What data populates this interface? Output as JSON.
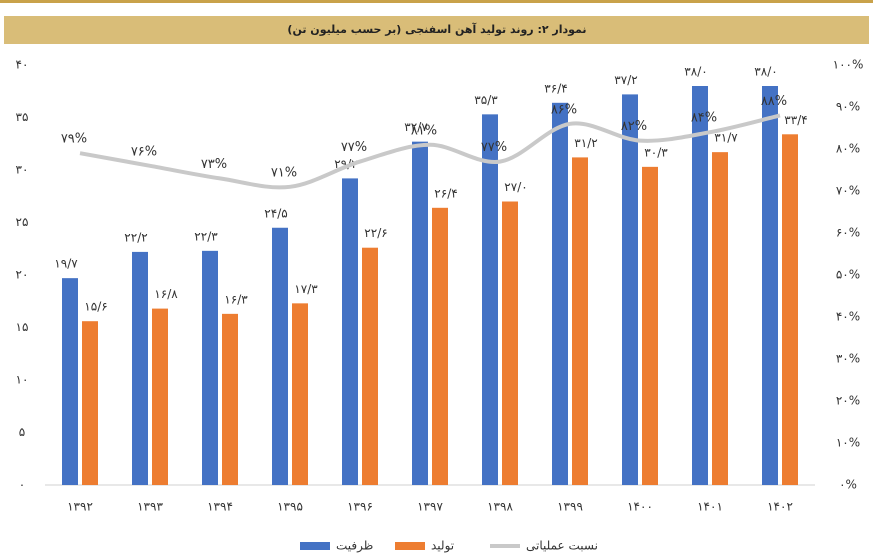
{
  "chart_data": {
    "type": "bar",
    "title": "نمودار ۲: روند تولید آهن اسفنجی (بر حسب میلیون تن)",
    "categories": [
      "۱۳۹۲",
      "۱۳۹۳",
      "۱۳۹۴",
      "۱۳۹۵",
      "۱۳۹۶",
      "۱۳۹۷",
      "۱۳۹۸",
      "۱۳۹۹",
      "۱۴۰۰",
      "۱۴۰۱",
      "۱۴۰۲"
    ],
    "series": [
      {
        "name": "ظرفیت",
        "color": "#4472c4",
        "values": [
          19.7,
          22.2,
          22.3,
          24.5,
          29.2,
          32.7,
          35.3,
          36.4,
          37.2,
          38.0,
          38.0
        ],
        "value_labels": [
          "۱۹/۷",
          "۲۲/۲",
          "۲۲/۳",
          "۲۴/۵",
          "۲۹/۲",
          "۳۲/۷",
          "۳۵/۳",
          "۳۶/۴",
          "۳۷/۲",
          "۳۸/۰",
          "۳۸/۰"
        ]
      },
      {
        "name": "تولید",
        "color": "#ed7d31",
        "values": [
          15.6,
          16.8,
          16.3,
          17.3,
          22.6,
          26.4,
          27.0,
          31.2,
          30.3,
          31.7,
          33.4
        ],
        "value_labels": [
          "۱۵/۶",
          "۱۶/۸",
          "۱۶/۳",
          "۱۷/۳",
          "۲۲/۶",
          "۲۶/۴",
          "۲۷/۰",
          "۳۱/۲",
          "۳۰/۳",
          "۳۱/۷",
          "۳۳/۴"
        ]
      },
      {
        "name": "نسبت عملیاتی",
        "color": "#c9c9c9",
        "type": "line",
        "axis": "y2",
        "values": [
          79,
          76,
          73,
          71,
          77,
          81,
          77,
          86,
          82,
          84,
          88
        ],
        "value_labels": [
          "۷۹%",
          "۷۶%",
          "۷۳%",
          "۷۱%",
          "۷۷%",
          "۸۱%",
          "۷۷%",
          "۸۶%",
          "۸۲%",
          "۸۴%",
          "۸۸%"
        ]
      }
    ],
    "ylim": [
      0,
      40
    ],
    "yticks": [
      {
        "value": 0,
        "label": "۰"
      },
      {
        "value": 5,
        "label": "۵"
      },
      {
        "value": 10,
        "label": "۱۰"
      },
      {
        "value": 15,
        "label": "۱۵"
      },
      {
        "value": 20,
        "label": "۲۰"
      },
      {
        "value": 25,
        "label": "۲۵"
      },
      {
        "value": 30,
        "label": "۳۰"
      },
      {
        "value": 35,
        "label": "۳۵"
      },
      {
        "value": 40,
        "label": "۴۰"
      }
    ],
    "y2lim": [
      0,
      100
    ],
    "y2ticks": [
      {
        "value": 0,
        "label": "۰%"
      },
      {
        "value": 10,
        "label": "۱۰%"
      },
      {
        "value": 20,
        "label": "۲۰%"
      },
      {
        "value": 30,
        "label": "۳۰%"
      },
      {
        "value": 40,
        "label": "۴۰%"
      },
      {
        "value": 50,
        "label": "۵۰%"
      },
      {
        "value": 60,
        "label": "۶۰%"
      },
      {
        "value": 70,
        "label": "۷۰%"
      },
      {
        "value": 80,
        "label": "۸۰%"
      },
      {
        "value": 90,
        "label": "۹۰%"
      },
      {
        "value": 100,
        "label": "۱۰۰%"
      }
    ],
    "legend": "bottom"
  }
}
